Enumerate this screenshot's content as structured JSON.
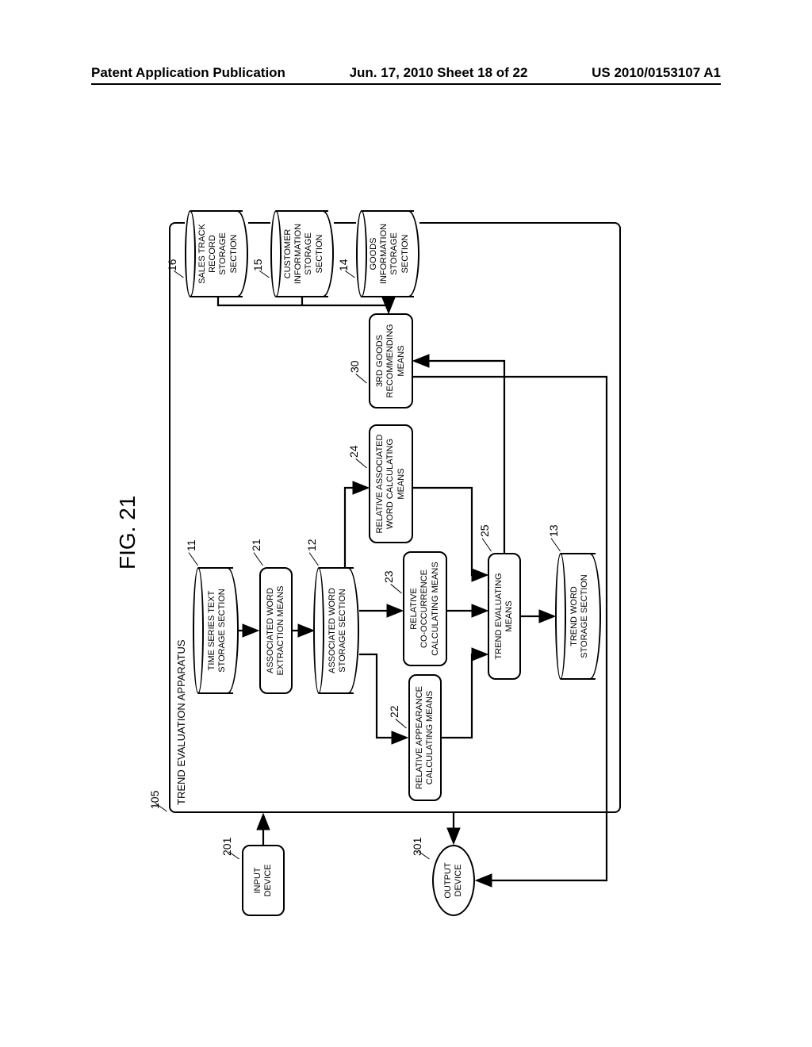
{
  "header": {
    "left": "Patent Application Publication",
    "center": "Jun. 17, 2010  Sheet 18 of 22",
    "right": "US 2010/0153107 A1"
  },
  "figure": {
    "title": "FIG. 21",
    "apparatus_ref": "105",
    "apparatus_title": "TREND EVALUATION APPARATUS"
  },
  "elements": {
    "input_device": {
      "label": "INPUT\nDEVICE",
      "ref": "201"
    },
    "output_device": {
      "label": "OUTPUT\nDEVICE",
      "ref": "301"
    },
    "time_series": {
      "label": "TIME SERIES TEXT\nSTORAGE SECTION",
      "ref": "11"
    },
    "assoc_extract": {
      "label": "ASSOCIATED WORD\nEXTRACTION MEANS",
      "ref": "21"
    },
    "assoc_storage": {
      "label": "ASSOCIATED WORD\nSTORAGE SECTION",
      "ref": "12"
    },
    "rel_appear": {
      "label": "RELATIVE APPEARANCE\nCALCULATING MEANS",
      "ref": "22"
    },
    "rel_cooccur": {
      "label": "RELATIVE\nCO-OCCURRENCE\nCALCULATING MEANS",
      "ref": "23"
    },
    "rel_assoc": {
      "label": "RELATIVE ASSOCIATED\nWORD CALCULATING\nMEANS",
      "ref": "24"
    },
    "trend_eval": {
      "label": "TREND EVALUATING\nMEANS",
      "ref": "25"
    },
    "trend_storage": {
      "label": "TREND WORD\nSTORAGE SECTION",
      "ref": "13"
    },
    "goods_rec": {
      "label": "3RD GOODS\nRECOMMENDING\nMEANS",
      "ref": "30"
    },
    "sales_track": {
      "label": "SALES TRACK\nRECORD\nSTORAGE\nSECTION",
      "ref": "16"
    },
    "customer": {
      "label": "CUSTOMER\nINFORMATION\nSTORAGE\nSECTION",
      "ref": "15"
    },
    "goods_info": {
      "label": "GOODS\nINFORMATION\nSTORAGE\nSECTION",
      "ref": "14"
    }
  },
  "style": {
    "line_color": "#000000",
    "bg_color": "#ffffff",
    "font": "Arial",
    "stroke_width": 2.5
  }
}
